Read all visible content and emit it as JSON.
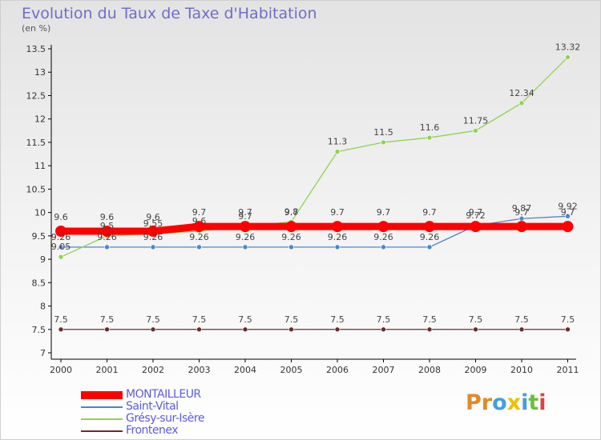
{
  "chart_data": {
    "type": "line",
    "title": "Evolution du Taux de Taxe d'Habitation",
    "ylabel": "(en %)",
    "xlabel": "",
    "x": [
      "2000",
      "2001",
      "2002",
      "2003",
      "2004",
      "2005",
      "2006",
      "2007",
      "2008",
      "2009",
      "2010",
      "2011"
    ],
    "ylim": [
      7,
      13.5
    ],
    "yticks": [
      "7",
      "7.5",
      "8",
      "8.5",
      "9",
      "9.5",
      "10",
      "10.5",
      "11",
      "11.5",
      "12",
      "12.5",
      "13",
      "13.5"
    ],
    "grid": false,
    "legend_position": "bottom-left",
    "series": [
      {
        "name": "MONTAILLEUR",
        "color": "#ff0000",
        "values": [
          9.6,
          9.6,
          9.6,
          9.7,
          9.7,
          9.7,
          9.7,
          9.7,
          9.7,
          9.7,
          9.7,
          9.7
        ],
        "labels": [
          "9.6",
          "9.6",
          "9.6",
          "9.7",
          "9.7",
          "9.7",
          "9.7",
          "9.7",
          "9.7",
          "9.7",
          "9.7",
          "9.7"
        ]
      },
      {
        "name": "Saint-Vital",
        "color": "#4d86c4",
        "values": [
          9.26,
          9.26,
          9.26,
          9.26,
          9.26,
          9.26,
          9.26,
          9.26,
          9.26,
          9.72,
          9.87,
          9.92
        ],
        "labels": [
          "9.26",
          "9.26",
          "9.26",
          "9.26",
          "9.26",
          "9.26",
          "9.26",
          "9.26",
          "9.26",
          "9.72",
          "9.87",
          "9.92"
        ]
      },
      {
        "name": "Grésy-sur-Isère",
        "color": "#8fd353",
        "values": [
          9.05,
          9.5,
          9.55,
          9.6,
          9.7,
          9.8,
          11.3,
          11.5,
          11.6,
          11.75,
          12.34,
          13.32
        ],
        "labels": [
          "9.05",
          "9.5",
          "9.55",
          "9.6",
          "9.7",
          "9.8",
          "11.3",
          "11.5",
          "11.6",
          "11.75",
          "12.34",
          "13.32"
        ]
      },
      {
        "name": "Frontenex",
        "color": "#6b2b2b",
        "values": [
          7.5,
          7.5,
          7.5,
          7.5,
          7.5,
          7.5,
          7.5,
          7.5,
          7.5,
          7.5,
          7.5,
          7.5
        ],
        "labels": [
          "7.5",
          "7.5",
          "7.5",
          "7.5",
          "7.5",
          "7.5",
          "7.5",
          "7.5",
          "7.5",
          "7.5",
          "7.5",
          "7.5"
        ]
      }
    ]
  },
  "brand": {
    "parts": [
      "Pr",
      "o",
      "x",
      "i",
      "t",
      "i"
    ],
    "colors": [
      "#e08a2a",
      "#43a0d8",
      "#f0c000",
      "#43a0d8",
      "#6cbf3a",
      "#e04040"
    ]
  }
}
